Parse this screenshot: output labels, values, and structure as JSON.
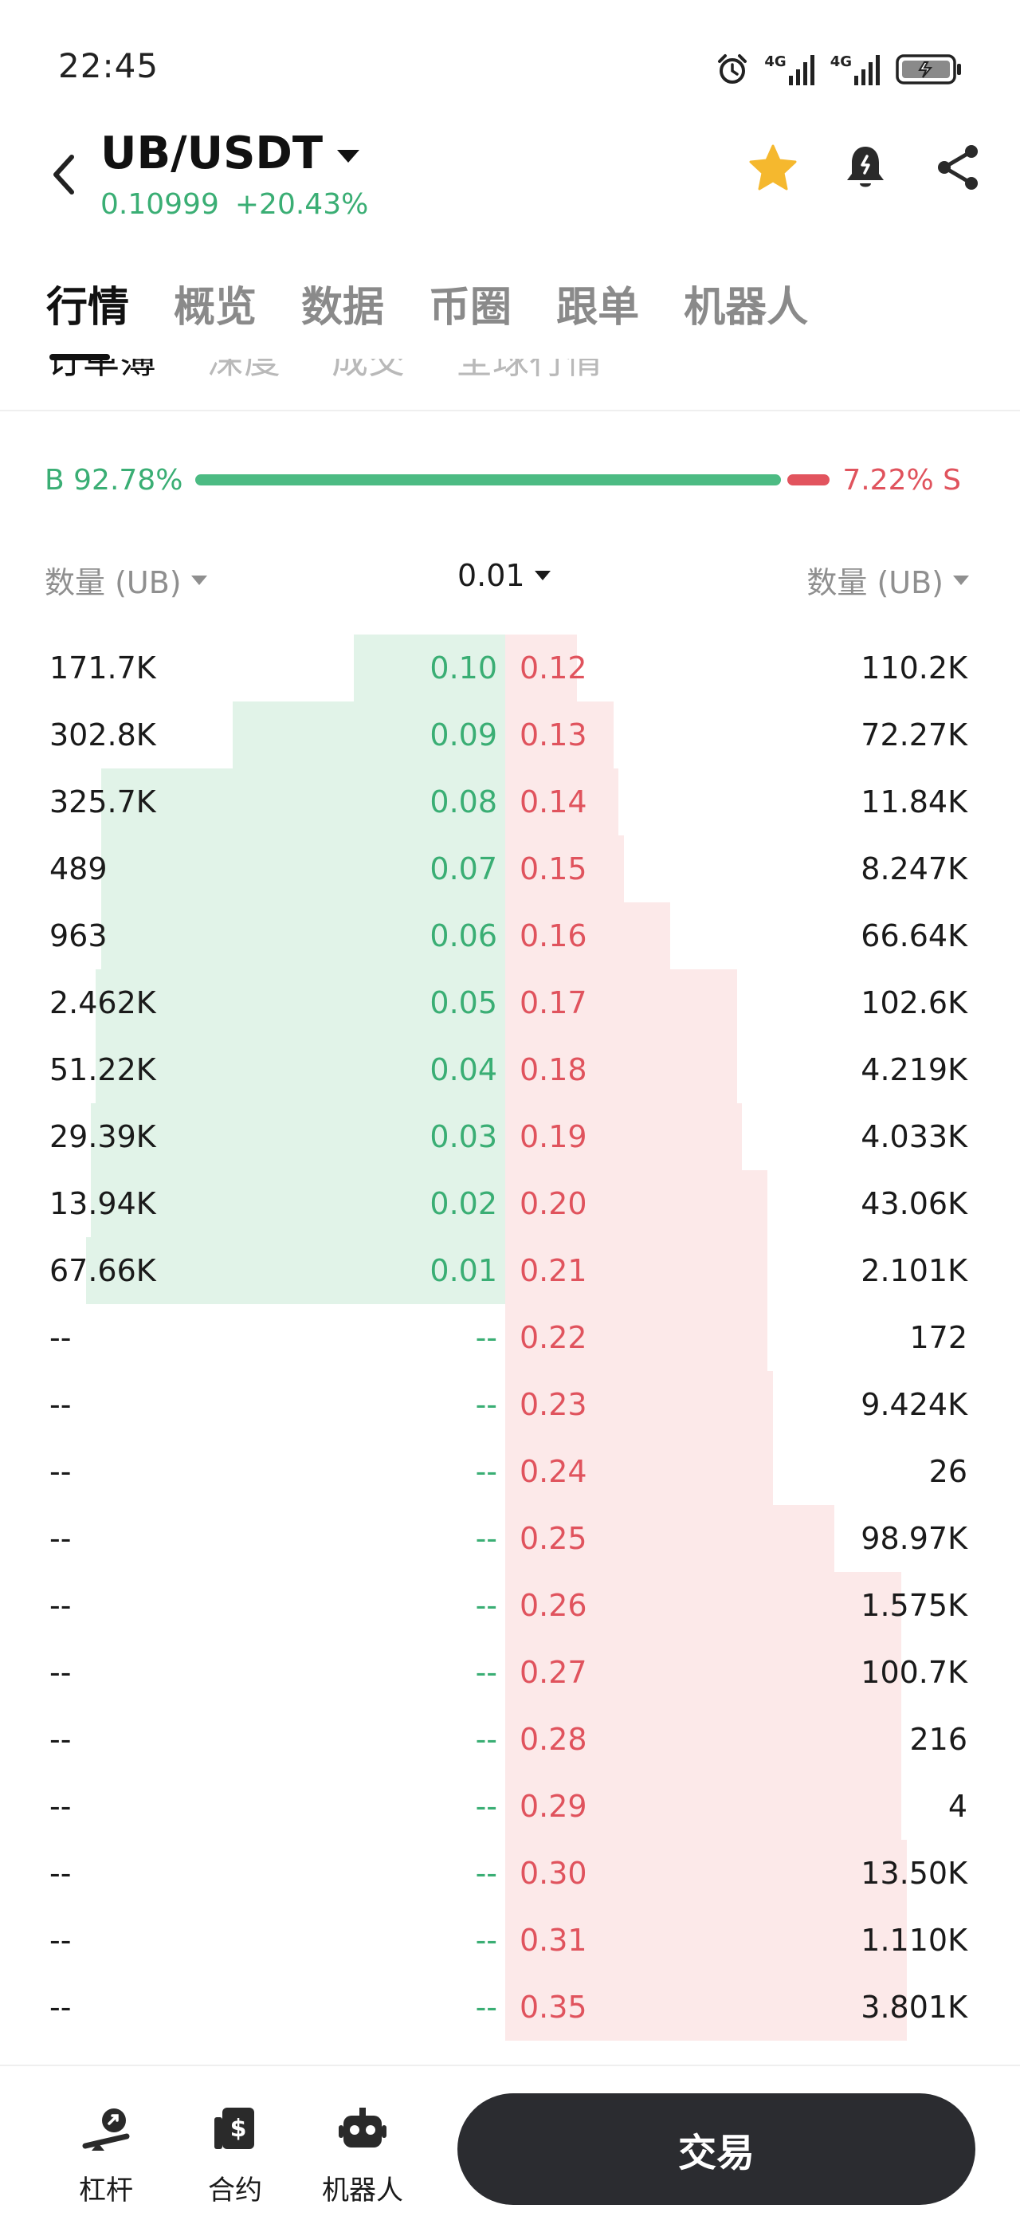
{
  "status_bar": {
    "time": "22:45",
    "network_1": "4G",
    "network_2": "4G"
  },
  "header": {
    "pair": "UB/USDT",
    "last_price": "0.10999",
    "change_pct": "+20.43%",
    "icons": [
      "back-icon",
      "star-icon",
      "bell-icon",
      "share-icon"
    ],
    "favorite_color": "#f5b82e"
  },
  "main_tabs": [
    {
      "label": "行情",
      "active": true
    },
    {
      "label": "概览",
      "active": false
    },
    {
      "label": "数据",
      "active": false
    },
    {
      "label": "币圈",
      "active": false
    },
    {
      "label": "跟单",
      "active": false
    },
    {
      "label": "机器人",
      "active": false
    }
  ],
  "sub_tabs": [
    {
      "label": "订单簿",
      "active": true
    },
    {
      "label": "深度",
      "active": false
    },
    {
      "label": "成交",
      "active": false
    },
    {
      "label": "全球行情",
      "active": false
    }
  ],
  "ratio": {
    "buy_label": "B 92.78%",
    "sell_label": "7.22% S",
    "buy_fraction": 0.9278,
    "sell_fraction": 0.0722,
    "buy_color": "#3aae74",
    "sell_color": "#e0535d"
  },
  "columns": {
    "left": "数量 (UB)",
    "precision": "0.01",
    "right": "数量 (UB)"
  },
  "order_book": [
    {
      "bid_qty": "171.7K",
      "bid_price": "0.10",
      "ask_price": "0.12",
      "ask_qty": "110.2K",
      "bid_depth": 0.3,
      "ask_depth": 0.14
    },
    {
      "bid_qty": "302.8K",
      "bid_price": "0.09",
      "ask_price": "0.13",
      "ask_qty": "72.27K",
      "bid_depth": 0.54,
      "ask_depth": 0.21
    },
    {
      "bid_qty": "325.7K",
      "bid_price": "0.08",
      "ask_price": "0.14",
      "ask_qty": "11.84K",
      "bid_depth": 0.8,
      "ask_depth": 0.22
    },
    {
      "bid_qty": "489",
      "bid_price": "0.07",
      "ask_price": "0.15",
      "ask_qty": "8.247K",
      "bid_depth": 0.8,
      "ask_depth": 0.23
    },
    {
      "bid_qty": "963",
      "bid_price": "0.06",
      "ask_price": "0.16",
      "ask_qty": "66.64K",
      "bid_depth": 0.8,
      "ask_depth": 0.32
    },
    {
      "bid_qty": "2.462K",
      "bid_price": "0.05",
      "ask_price": "0.17",
      "ask_qty": "102.6K",
      "bid_depth": 0.81,
      "ask_depth": 0.45
    },
    {
      "bid_qty": "51.22K",
      "bid_price": "0.04",
      "ask_price": "0.18",
      "ask_qty": "4.219K",
      "bid_depth": 0.81,
      "ask_depth": 0.45
    },
    {
      "bid_qty": "29.39K",
      "bid_price": "0.03",
      "ask_price": "0.19",
      "ask_qty": "4.033K",
      "bid_depth": 0.82,
      "ask_depth": 0.46
    },
    {
      "bid_qty": "13.94K",
      "bid_price": "0.02",
      "ask_price": "0.20",
      "ask_qty": "43.06K",
      "bid_depth": 0.82,
      "ask_depth": 0.51
    },
    {
      "bid_qty": "67.66K",
      "bid_price": "0.01",
      "ask_price": "0.21",
      "ask_qty": "2.101K",
      "bid_depth": 0.83,
      "ask_depth": 0.51
    },
    {
      "bid_qty": "--",
      "bid_price": "--",
      "ask_price": "0.22",
      "ask_qty": "172",
      "bid_depth": 0,
      "ask_depth": 0.51
    },
    {
      "bid_qty": "--",
      "bid_price": "--",
      "ask_price": "0.23",
      "ask_qty": "9.424K",
      "bid_depth": 0,
      "ask_depth": 0.52
    },
    {
      "bid_qty": "--",
      "bid_price": "--",
      "ask_price": "0.24",
      "ask_qty": "26",
      "bid_depth": 0,
      "ask_depth": 0.52
    },
    {
      "bid_qty": "--",
      "bid_price": "--",
      "ask_price": "0.25",
      "ask_qty": "98.97K",
      "bid_depth": 0,
      "ask_depth": 0.64
    },
    {
      "bid_qty": "--",
      "bid_price": "--",
      "ask_price": "0.26",
      "ask_qty": "1.575K",
      "bid_depth": 0,
      "ask_depth": 0.77
    },
    {
      "bid_qty": "--",
      "bid_price": "--",
      "ask_price": "0.27",
      "ask_qty": "100.7K",
      "bid_depth": 0,
      "ask_depth": 0.77
    },
    {
      "bid_qty": "--",
      "bid_price": "--",
      "ask_price": "0.28",
      "ask_qty": "216",
      "bid_depth": 0,
      "ask_depth": 0.77
    },
    {
      "bid_qty": "--",
      "bid_price": "--",
      "ask_price": "0.29",
      "ask_qty": "4",
      "bid_depth": 0,
      "ask_depth": 0.77
    },
    {
      "bid_qty": "--",
      "bid_price": "--",
      "ask_price": "0.30",
      "ask_qty": "13.50K",
      "bid_depth": 0,
      "ask_depth": 0.78
    },
    {
      "bid_qty": "--",
      "bid_price": "--",
      "ask_price": "0.31",
      "ask_qty": "1.110K",
      "bid_depth": 0,
      "ask_depth": 0.78
    },
    {
      "bid_qty": "--",
      "bid_price": "--",
      "ask_price": "0.35",
      "ask_qty": "3.801K",
      "bid_depth": 0,
      "ask_depth": 0.78
    }
  ],
  "bottom_nav": {
    "items": [
      {
        "label": "杠杆",
        "icon": "leverage-icon"
      },
      {
        "label": "合约",
        "icon": "contract-icon"
      },
      {
        "label": "机器人",
        "icon": "robot-icon"
      }
    ],
    "trade_label": "交易"
  }
}
